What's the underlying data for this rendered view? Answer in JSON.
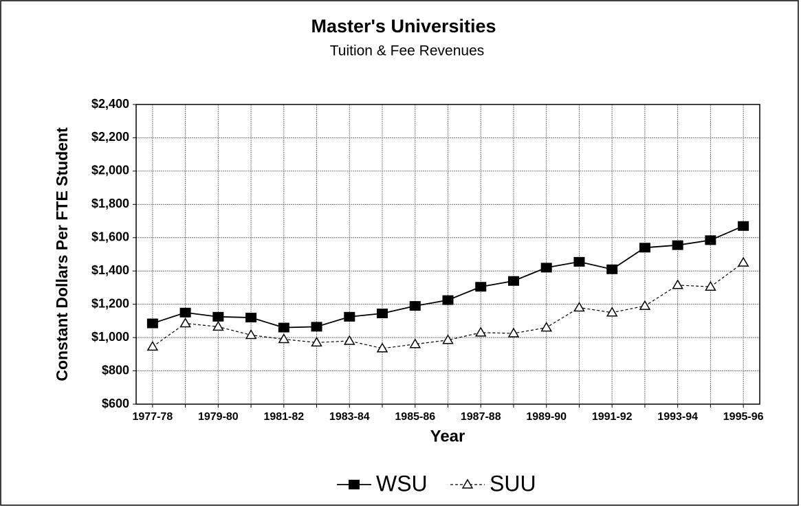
{
  "chart_data": {
    "type": "line",
    "title": "Master's Universities",
    "subtitle": "Tuition & Fee Revenues",
    "x_label": "Year",
    "y_label": "Constant Dollars Per FTE Student",
    "categories": [
      "1977-78",
      null,
      "1979-80",
      null,
      "1981-82",
      null,
      "1983-84",
      null,
      "1985-86",
      null,
      "1987-88",
      null,
      "1989-90",
      null,
      "1991-92",
      null,
      "1993-94",
      null,
      "1995-96"
    ],
    "series": [
      {
        "name": "WSU",
        "color": "#000000",
        "marker": "square",
        "dashed": false,
        "values": [
          1085,
          1150,
          1125,
          1120,
          1060,
          1065,
          1125,
          1145,
          1190,
          1225,
          1305,
          1340,
          1420,
          1455,
          1410,
          1540,
          1555,
          1585,
          1670
        ]
      },
      {
        "name": "SUU",
        "color": "#000000",
        "marker": "triangle",
        "dashed": true,
        "values": [
          945,
          1085,
          1065,
          1015,
          990,
          970,
          980,
          935,
          960,
          985,
          1030,
          1025,
          1060,
          1180,
          1150,
          1190,
          1315,
          1305,
          1450
        ]
      }
    ],
    "ylim": [
      600,
      2400
    ],
    "yticks": [
      {
        "value": 600,
        "label": "$600"
      },
      {
        "value": 800,
        "label": "$800"
      },
      {
        "value": 1000,
        "label": "$1,000"
      },
      {
        "value": 1200,
        "label": "$1,200"
      },
      {
        "value": 1400,
        "label": "$1,400"
      },
      {
        "value": 1600,
        "label": "$1,600"
      },
      {
        "value": 1800,
        "label": "$1,800"
      },
      {
        "value": 2000,
        "label": "$2,000"
      },
      {
        "value": 2200,
        "label": "$2,200"
      },
      {
        "value": 2400,
        "label": "$2,400"
      }
    ],
    "grid": true,
    "legend": "bottom"
  }
}
